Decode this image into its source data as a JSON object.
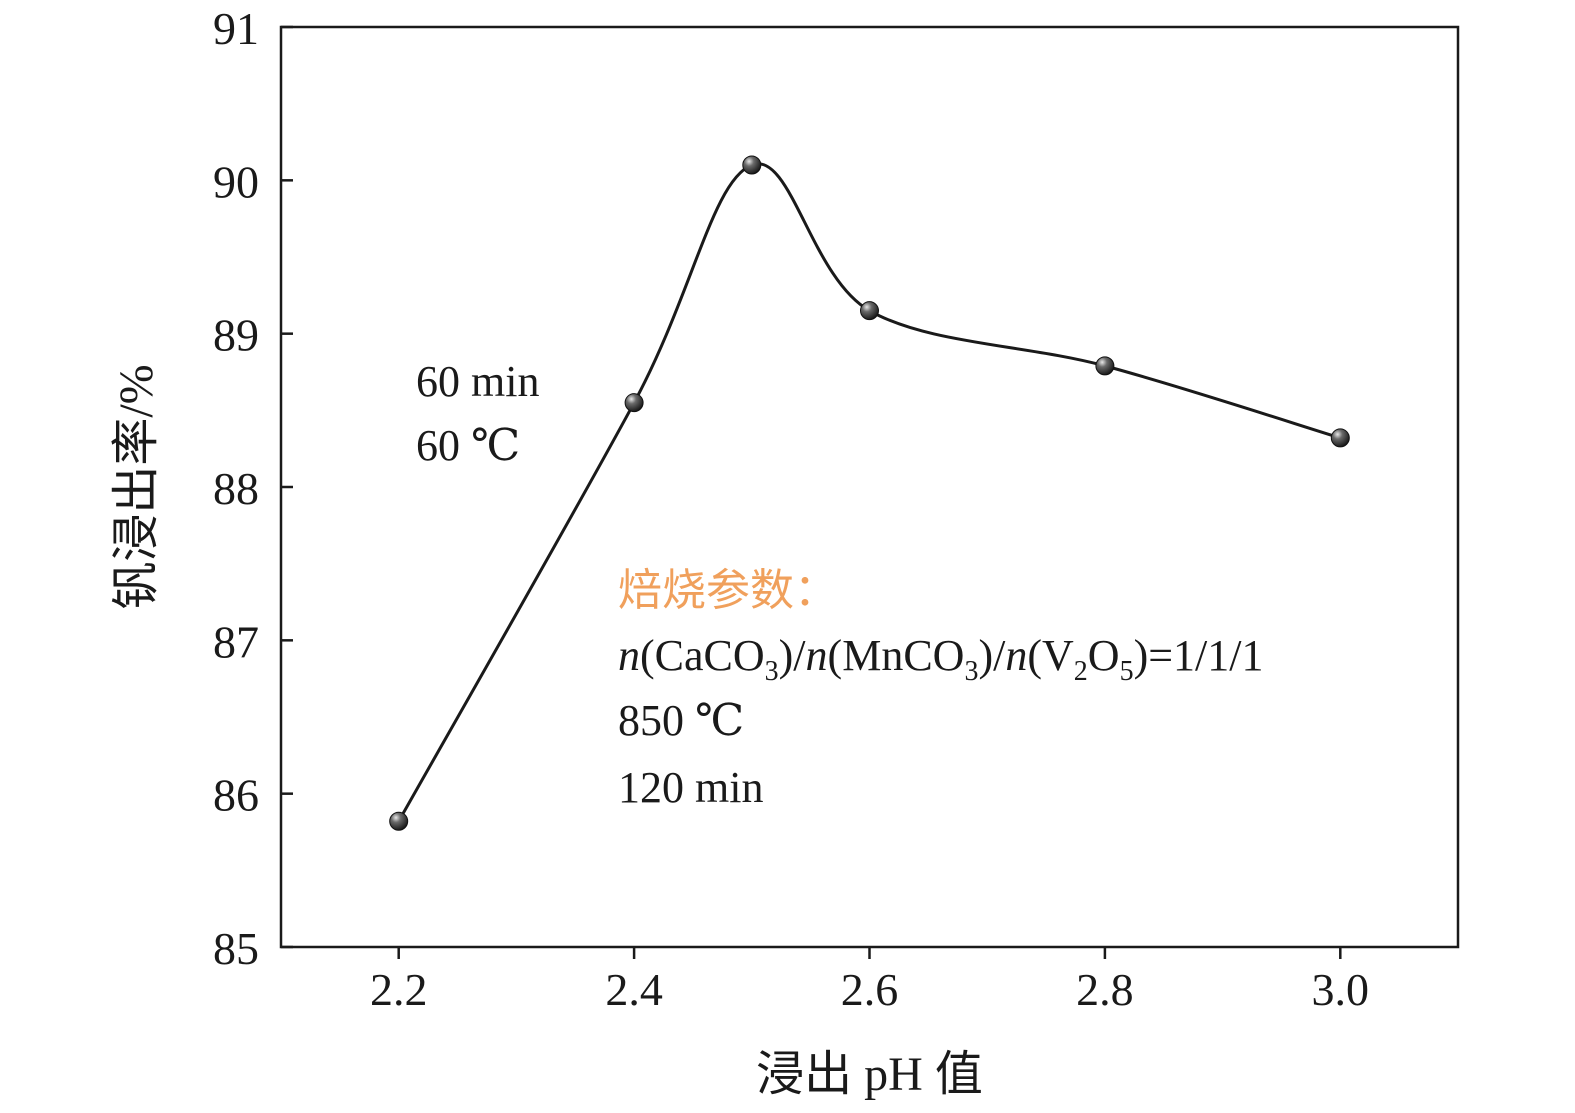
{
  "chart_data": {
    "type": "line",
    "xlabel": "浸出 pH 值",
    "ylabel": "钒浸出率/%",
    "xlim": [
      2.1,
      3.1
    ],
    "ylim": [
      85,
      91
    ],
    "xticks": [
      "2.2",
      "2.4",
      "2.6",
      "2.8",
      "3.0"
    ],
    "yticks": [
      "85",
      "86",
      "87",
      "88",
      "89",
      "90",
      "91"
    ],
    "grid": false,
    "series": [
      {
        "x": [
          2.2,
          2.4,
          2.5,
          2.6,
          2.8,
          3.0
        ],
        "y": [
          85.82,
          88.55,
          90.1,
          89.15,
          88.79,
          88.32
        ],
        "line_style": "smooth",
        "marker": "sphere"
      }
    ],
    "annotations": {
      "leach_conditions": [
        "60 min",
        "60 ℃"
      ],
      "roast_title": "焙烧参数：",
      "roast_title_color": "#f0a05c",
      "roast_lines": [
        "850 ℃",
        "120 min"
      ],
      "ratio": {
        "n": "n",
        "caco": "(CaCO",
        "mnco": ")/",
        "mnco_main": "(MnCO",
        "v_main": ")/",
        "v_open": "(V",
        "o": "O",
        "sub3": "3",
        "sub2": "2",
        "sub5": "5",
        "tail": ")=1/1/1"
      }
    }
  }
}
